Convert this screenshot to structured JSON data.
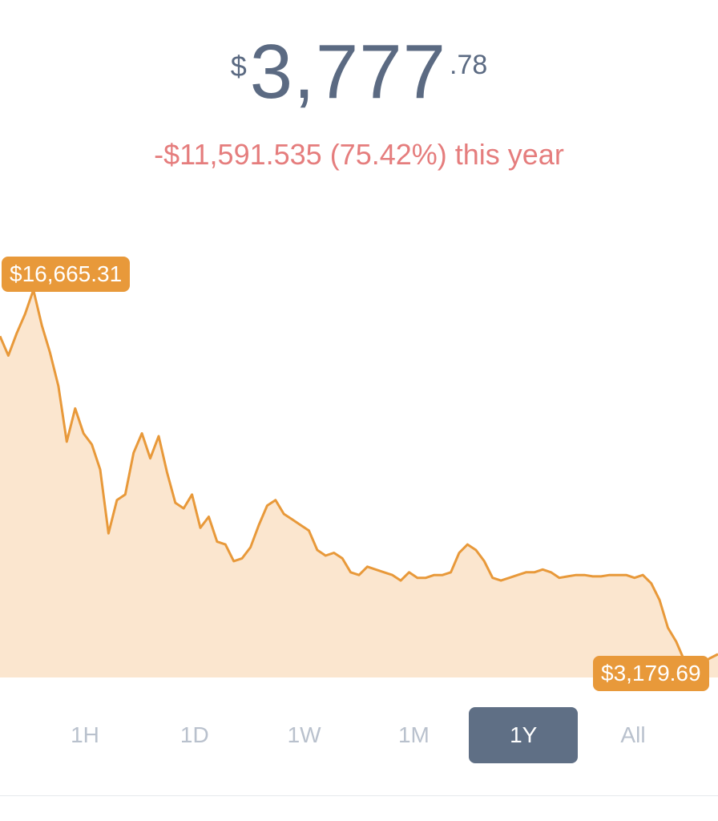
{
  "price": {
    "currency_symbol": "$",
    "main": "3,777",
    "cents": ".78"
  },
  "change": {
    "text": "-$11,591.535 (75.42%) this year",
    "color": "#e57d7d"
  },
  "chart_data": {
    "type": "area",
    "title": "",
    "xlabel": "",
    "ylabel": "",
    "ylim": [
      3000,
      17000
    ],
    "color": "#e8993a",
    "fill_color": "#fbe6cf",
    "high_label": "$16,665.31",
    "low_label": "$3,179.69",
    "values": [
      15000,
      14300,
      15100,
      15800,
      16665,
      15400,
      14400,
      13200,
      11200,
      12400,
      11500,
      11100,
      10200,
      7900,
      9100,
      9300,
      10800,
      11500,
      10600,
      11400,
      10100,
      9000,
      8800,
      9300,
      8100,
      8500,
      7600,
      7500,
      6900,
      7000,
      7400,
      8200,
      8900,
      9100,
      8600,
      8400,
      8200,
      8000,
      7300,
      7100,
      7200,
      7000,
      6500,
      6400,
      6700,
      6600,
      6500,
      6400,
      6200,
      6500,
      6300,
      6300,
      6400,
      6400,
      6500,
      7200,
      7500,
      7300,
      6900,
      6300,
      6200,
      6300,
      6400,
      6500,
      6500,
      6600,
      6500,
      6300,
      6350,
      6400,
      6400,
      6350,
      6350,
      6400,
      6400,
      6400,
      6300,
      6400,
      6100,
      5500,
      4500,
      4000,
      3300,
      3350,
      3179,
      3400,
      3550
    ]
  },
  "tabs": [
    {
      "label": "1H",
      "active": false
    },
    {
      "label": "1D",
      "active": false
    },
    {
      "label": "1W",
      "active": false
    },
    {
      "label": "1M",
      "active": false
    },
    {
      "label": "1Y",
      "active": true
    },
    {
      "label": "All",
      "active": false
    }
  ]
}
